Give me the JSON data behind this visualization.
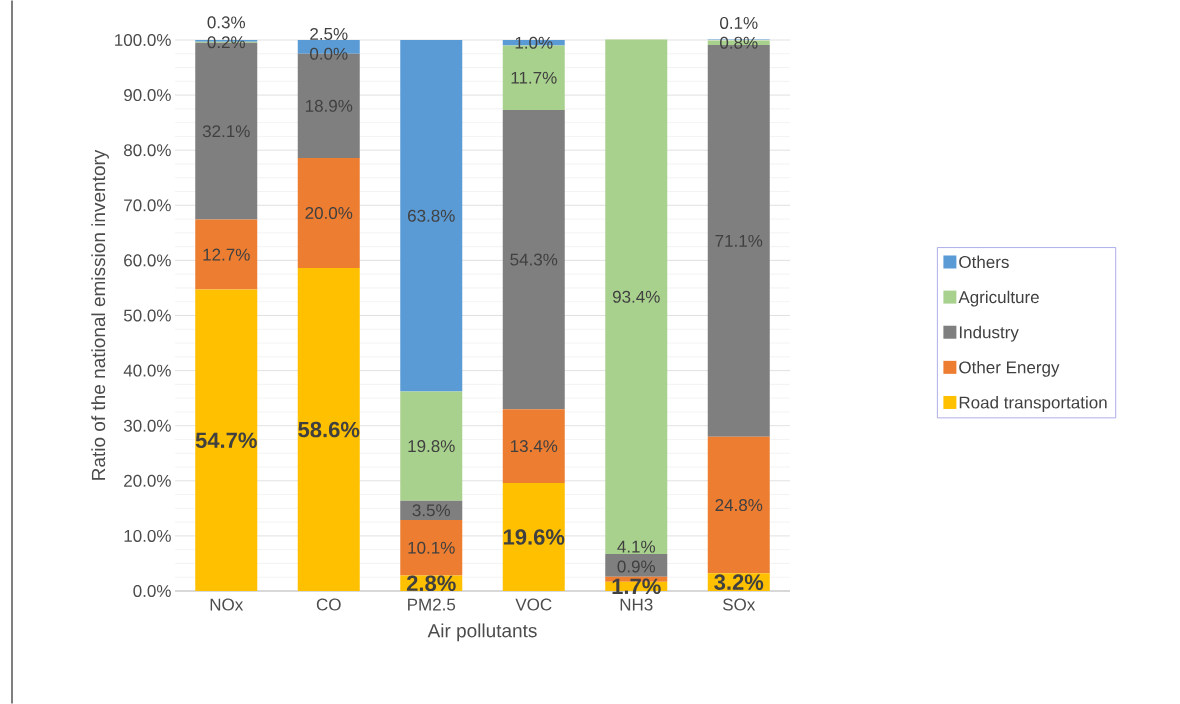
{
  "chart_data": {
    "type": "bar",
    "stacked": true,
    "xlabel": "Air pollutants",
    "ylabel": "Ratio of the national emission inventory",
    "categories": [
      "NOx",
      "CO",
      "PM2.5",
      "VOC",
      "NH3",
      "SOx"
    ],
    "ylim": [
      0,
      100
    ],
    "yticks": [
      {
        "value": 0,
        "label": "0.0%"
      },
      {
        "value": 10,
        "label": "10.0%"
      },
      {
        "value": 20,
        "label": "20.0%"
      },
      {
        "value": 30,
        "label": "30.0%"
      },
      {
        "value": 40,
        "label": "40.0%"
      },
      {
        "value": 50,
        "label": "50.0%"
      },
      {
        "value": 60,
        "label": "60.0%"
      },
      {
        "value": 70,
        "label": "70.0%"
      },
      {
        "value": 80,
        "label": "80.0%"
      },
      {
        "value": 90,
        "label": "90.0%"
      },
      {
        "value": 100,
        "label": "100.0%"
      }
    ],
    "grid": "y",
    "legend": "right",
    "series": [
      {
        "name": "Road transportation",
        "color": "#ffc000",
        "values": [
          54.7,
          58.6,
          2.8,
          19.6,
          1.7,
          3.2
        ],
        "value_labels": [
          "54.7%",
          "58.6%",
          "2.8%",
          "19.6%",
          "1.7%",
          "3.2%"
        ]
      },
      {
        "name": "Other Energy",
        "color": "#ed7d31",
        "values": [
          12.7,
          20.0,
          10.1,
          13.4,
          0.9,
          24.8
        ],
        "value_labels": [
          "12.7%",
          "20.0%",
          "10.1%",
          "13.4%",
          "0.9%",
          "24.8%"
        ]
      },
      {
        "name": "Industry",
        "color": "#7f7f7f",
        "values": [
          32.1,
          18.9,
          3.5,
          54.3,
          4.1,
          71.1
        ],
        "value_labels": [
          "32.1%",
          "18.9%",
          "3.5%",
          "54.3%",
          "4.1%",
          "71.1%"
        ]
      },
      {
        "name": "Agriculture",
        "color": "#a9d18e",
        "values": [
          0.2,
          0.0,
          19.8,
          11.7,
          93.4,
          0.8
        ],
        "value_labels": [
          "0.2%",
          "0.0%",
          "19.8%",
          "11.7%",
          "93.4%",
          "0.8%"
        ]
      },
      {
        "name": "Others",
        "color": "#5b9bd5",
        "values": [
          0.3,
          2.5,
          63.8,
          1.0,
          null,
          0.1
        ],
        "value_labels": [
          "0.3%",
          "2.5%",
          "63.8%",
          "1.0%",
          null,
          "0.1%"
        ]
      }
    ]
  }
}
